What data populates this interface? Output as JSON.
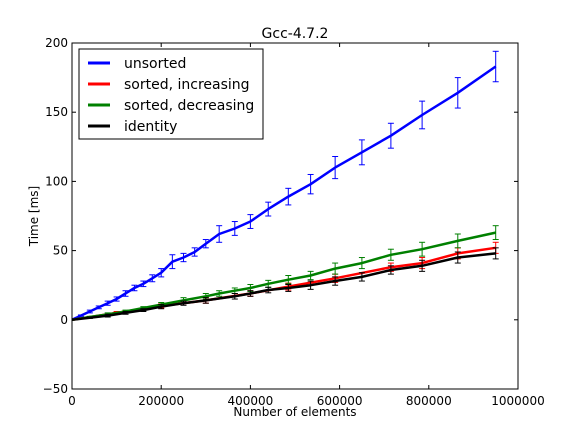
{
  "chart_data": {
    "type": "line",
    "title": "Gcc-4.7.2",
    "xlabel": "Number of elements",
    "ylabel": "Time [ms]",
    "xlim": [
      0,
      1000000
    ],
    "ylim": [
      -50,
      200
    ],
    "xticks": [
      0,
      200000,
      400000,
      600000,
      800000,
      1000000
    ],
    "yticks": [
      -50,
      0,
      50,
      100,
      150,
      200
    ],
    "xtick_labels": [
      "0",
      "200000",
      "400000",
      "600000",
      "800000",
      "1000000"
    ],
    "ytick_labels": [
      "−50",
      "0",
      "50",
      "100",
      "150",
      "200"
    ],
    "grid": false,
    "legend_position": "top-left",
    "series": [
      {
        "name": "unsorted",
        "color": "#0000ff",
        "points": [
          [
            0,
            0,
            0
          ],
          [
            20000,
            3,
            0.5
          ],
          [
            40000,
            6,
            1
          ],
          [
            60000,
            9,
            1
          ],
          [
            80000,
            12,
            1.5
          ],
          [
            100000,
            15,
            1.5
          ],
          [
            120000,
            19,
            2
          ],
          [
            140000,
            23,
            2
          ],
          [
            160000,
            26,
            2
          ],
          [
            180000,
            30,
            2.5
          ],
          [
            200000,
            34,
            3
          ],
          [
            225000,
            42,
            5
          ],
          [
            250000,
            45,
            3
          ],
          [
            275000,
            49,
            3
          ],
          [
            300000,
            55,
            3
          ],
          [
            330000,
            62,
            6
          ],
          [
            365000,
            66,
            5
          ],
          [
            400000,
            71,
            5
          ],
          [
            440000,
            80,
            5
          ],
          [
            485000,
            89,
            6
          ],
          [
            535000,
            98,
            7
          ],
          [
            590000,
            110,
            8
          ],
          [
            650000,
            121,
            9
          ],
          [
            715000,
            133,
            9
          ],
          [
            785000,
            148,
            10
          ],
          [
            865000,
            164,
            11
          ],
          [
            950000,
            183,
            11
          ]
        ]
      },
      {
        "name": "sorted, increasing",
        "color": "#ff0000",
        "points": [
          [
            0,
            0,
            0
          ],
          [
            100000,
            5,
            1
          ],
          [
            200000,
            10,
            1.5
          ],
          [
            300000,
            14,
            2
          ],
          [
            400000,
            19,
            2
          ],
          [
            485000,
            24,
            2.5
          ],
          [
            590000,
            30,
            3
          ],
          [
            715000,
            38,
            3
          ],
          [
            785000,
            41,
            4
          ],
          [
            865000,
            48,
            4
          ],
          [
            950000,
            52,
            4
          ]
        ]
      },
      {
        "name": "sorted, decreasing",
        "color": "#008000",
        "points": [
          [
            0,
            0,
            0
          ],
          [
            40000,
            2,
            0.5
          ],
          [
            80000,
            4,
            1
          ],
          [
            120000,
            6,
            1
          ],
          [
            160000,
            8.5,
            1
          ],
          [
            200000,
            11,
            1.5
          ],
          [
            250000,
            14,
            2
          ],
          [
            300000,
            17,
            2
          ],
          [
            330000,
            19,
            2
          ],
          [
            365000,
            21,
            2
          ],
          [
            400000,
            23,
            2.5
          ],
          [
            440000,
            26,
            2.5
          ],
          [
            485000,
            29,
            3
          ],
          [
            535000,
            32,
            3
          ],
          [
            590000,
            37,
            4
          ],
          [
            650000,
            41,
            4
          ],
          [
            715000,
            47,
            4
          ],
          [
            785000,
            51,
            5
          ],
          [
            865000,
            57,
            5
          ],
          [
            950000,
            63,
            5
          ]
        ]
      },
      {
        "name": "identity",
        "color": "#000000",
        "points": [
          [
            0,
            0,
            0
          ],
          [
            40000,
            1.5,
            0.5
          ],
          [
            80000,
            3,
            1
          ],
          [
            120000,
            5,
            1
          ],
          [
            160000,
            7,
            1
          ],
          [
            200000,
            9.5,
            1.5
          ],
          [
            250000,
            12,
            1.5
          ],
          [
            300000,
            14,
            2
          ],
          [
            365000,
            17,
            2
          ],
          [
            400000,
            19,
            2
          ],
          [
            440000,
            21.5,
            2
          ],
          [
            485000,
            23,
            2.5
          ],
          [
            535000,
            25,
            3
          ],
          [
            590000,
            28,
            3
          ],
          [
            650000,
            31,
            3
          ],
          [
            715000,
            36,
            3
          ],
          [
            785000,
            39,
            4
          ],
          [
            865000,
            45,
            4
          ],
          [
            950000,
            48,
            4
          ]
        ]
      }
    ]
  }
}
